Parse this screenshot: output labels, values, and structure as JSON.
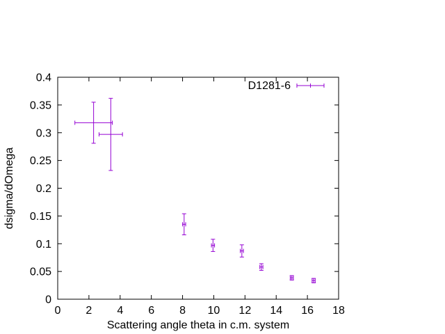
{
  "chart_data": {
    "type": "scatter",
    "xlabel": "Scattering angle theta in c.m. system",
    "ylabel": "dsigma/dOmega",
    "xlim": [
      0,
      18
    ],
    "ylim": [
      0,
      0.4
    ],
    "xticks": [
      0,
      2,
      4,
      6,
      8,
      10,
      12,
      14,
      16,
      18
    ],
    "yticks": [
      0,
      0.05,
      0.1,
      0.15,
      0.2,
      0.25,
      0.3,
      0.35,
      0.4
    ],
    "ytick_labels": [
      "0",
      "0.05",
      "0.1",
      "0.15",
      "0.2",
      "0.25",
      "0.3",
      "0.35",
      "0.4"
    ],
    "grid": false,
    "legend_position": "top-right",
    "series": [
      {
        "name": "D1281-6",
        "color": "#9400d3",
        "points": [
          {
            "x": 2.3,
            "y": 0.318,
            "x_err": 1.2,
            "y_err": 0.037
          },
          {
            "x": 3.4,
            "y": 0.297,
            "x_err": 0.75,
            "y_err": 0.065
          },
          {
            "x": 8.1,
            "y": 0.135,
            "x_err": 0.1,
            "y_err": 0.019
          },
          {
            "x": 9.95,
            "y": 0.097,
            "x_err": 0.1,
            "y_err": 0.011
          },
          {
            "x": 11.8,
            "y": 0.087,
            "x_err": 0.1,
            "y_err": 0.011
          },
          {
            "x": 13.05,
            "y": 0.058,
            "x_err": 0.1,
            "y_err": 0.006
          },
          {
            "x": 15.0,
            "y": 0.0385,
            "x_err": 0.1,
            "y_err": 0.004
          },
          {
            "x": 16.4,
            "y": 0.0335,
            "x_err": 0.1,
            "y_err": 0.004
          }
        ]
      }
    ]
  }
}
